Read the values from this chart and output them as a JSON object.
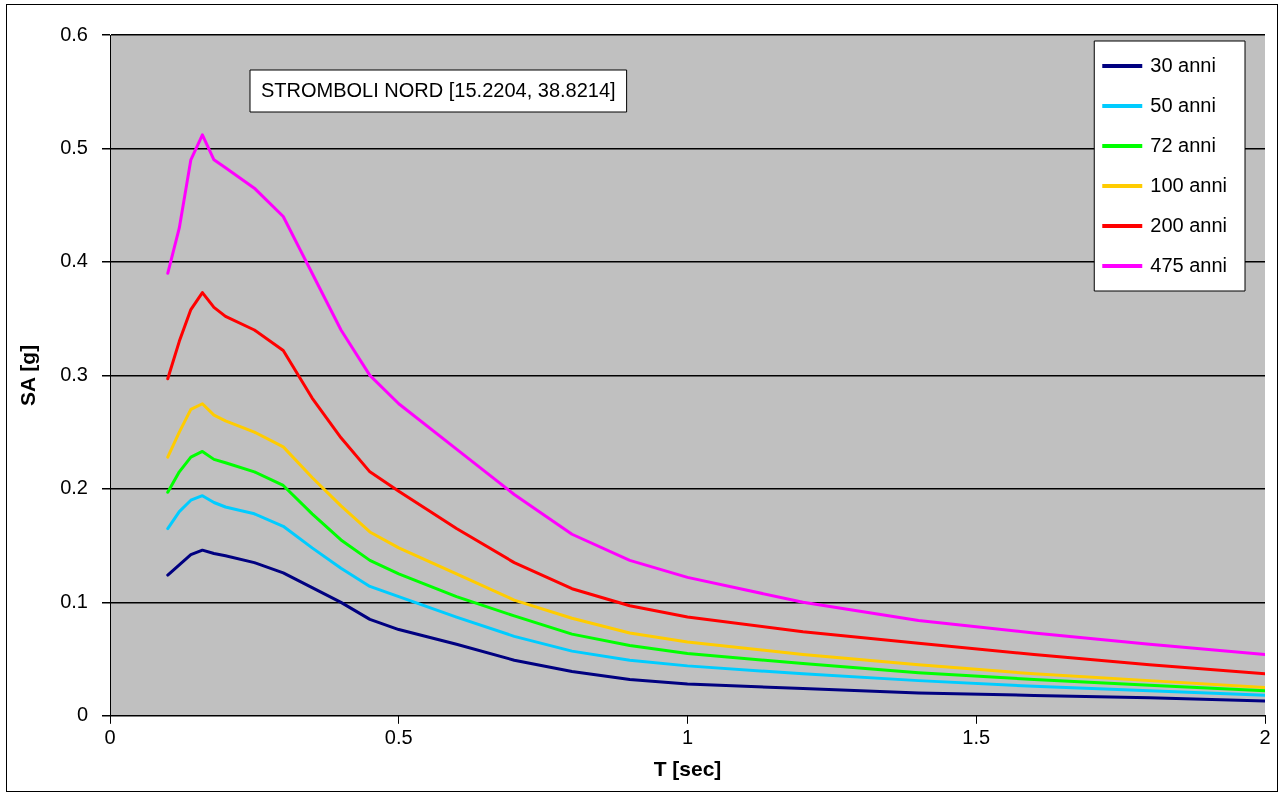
{
  "chart_data": {
    "type": "line",
    "xlabel": "T [sec]",
    "ylabel": "SA [g]",
    "annotations": [
      "STROMBOLI NORD [15.2204, 38.8214]"
    ],
    "x": [
      0.1,
      0.12,
      0.14,
      0.16,
      0.18,
      0.2,
      0.25,
      0.3,
      0.35,
      0.4,
      0.45,
      0.5,
      0.6,
      0.7,
      0.8,
      0.9,
      1.0,
      1.2,
      1.4,
      1.6,
      1.8,
      2.0
    ],
    "series": [
      {
        "name": "30 anni",
        "color": "#000080",
        "values": [
          0.124,
          0.133,
          0.142,
          0.146,
          0.143,
          0.141,
          0.135,
          0.126,
          0.113,
          0.1,
          0.085,
          0.076,
          0.063,
          0.049,
          0.039,
          0.032,
          0.028,
          0.024,
          0.02,
          0.018,
          0.016,
          0.013
        ]
      },
      {
        "name": "50 anni",
        "color": "#00ccff",
        "values": [
          0.165,
          0.18,
          0.19,
          0.194,
          0.188,
          0.184,
          0.178,
          0.167,
          0.148,
          0.13,
          0.114,
          0.105,
          0.087,
          0.07,
          0.057,
          0.049,
          0.044,
          0.037,
          0.031,
          0.026,
          0.022,
          0.018
        ]
      },
      {
        "name": "72 anni",
        "color": "#00ff00",
        "values": [
          0.197,
          0.215,
          0.228,
          0.233,
          0.226,
          0.223,
          0.215,
          0.203,
          0.178,
          0.155,
          0.137,
          0.125,
          0.105,
          0.088,
          0.072,
          0.062,
          0.055,
          0.046,
          0.038,
          0.032,
          0.027,
          0.022
        ]
      },
      {
        "name": "100 anni",
        "color": "#ffcc00",
        "values": [
          0.228,
          0.25,
          0.27,
          0.275,
          0.265,
          0.26,
          0.25,
          0.237,
          0.21,
          0.185,
          0.162,
          0.148,
          0.125,
          0.102,
          0.086,
          0.073,
          0.065,
          0.054,
          0.045,
          0.037,
          0.031,
          0.025
        ]
      },
      {
        "name": "200 anni",
        "color": "#ff0000",
        "values": [
          0.297,
          0.33,
          0.358,
          0.373,
          0.36,
          0.352,
          0.34,
          0.322,
          0.28,
          0.245,
          0.215,
          0.198,
          0.165,
          0.135,
          0.112,
          0.097,
          0.087,
          0.074,
          0.064,
          0.054,
          0.045,
          0.037
        ]
      },
      {
        "name": "475 anni",
        "color": "#ff00ff",
        "values": [
          0.39,
          0.43,
          0.49,
          0.512,
          0.49,
          0.483,
          0.465,
          0.44,
          0.39,
          0.34,
          0.3,
          0.275,
          0.235,
          0.195,
          0.16,
          0.137,
          0.122,
          0.1,
          0.084,
          0.073,
          0.063,
          0.054
        ]
      }
    ],
    "xlim": [
      0,
      2
    ],
    "xticks": [
      0,
      0.5,
      1,
      1.5,
      2
    ],
    "ylim": [
      0,
      0.6
    ],
    "yticks": [
      0,
      0.1,
      0.2,
      0.3,
      0.4,
      0.5,
      0.6
    ],
    "grid": "y",
    "legend": "top right",
    "marker": "none",
    "line_style": "solid"
  }
}
